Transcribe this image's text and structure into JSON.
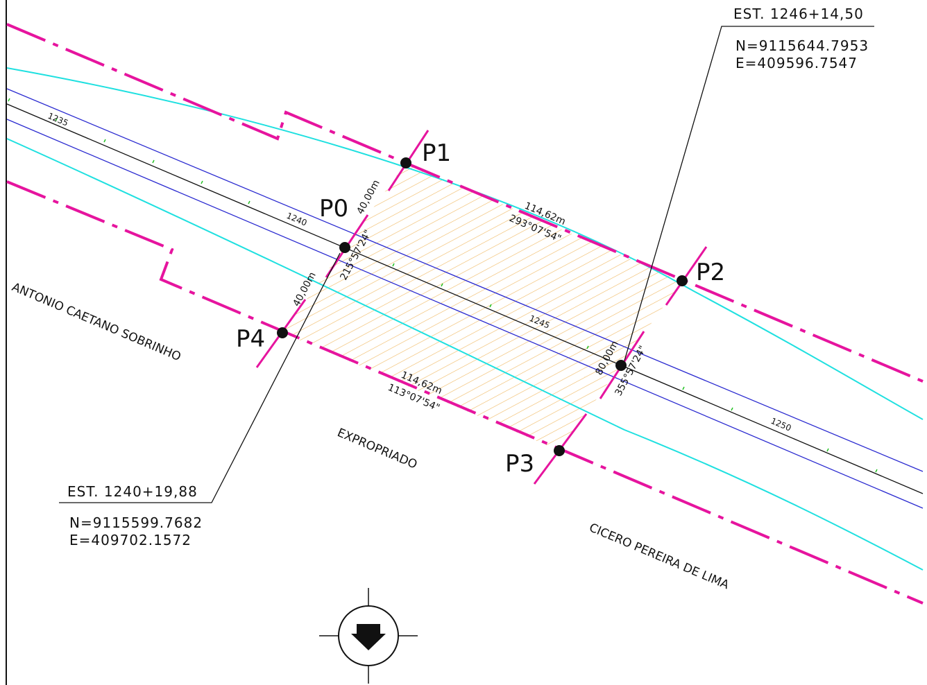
{
  "stations": {
    "upper": {
      "label": "EST. 1246+14,50",
      "north": "N=9115644.7953",
      "east": "E=409596.7547"
    },
    "lower": {
      "label": "EST. 1240+19,88",
      "north": "N=9115599.7682",
      "east": "E=409702.1572"
    }
  },
  "points": {
    "p0": "P0",
    "p1": "P1",
    "p2": "P2",
    "p3": "P3",
    "p4": "P4"
  },
  "dimensions": {
    "top_length": "114,62m",
    "top_bearing": "293°07'54\"",
    "bottom_length": "114,62m",
    "bottom_bearing": "113°07'54\"",
    "left_upper": "40,00m",
    "left_lower": "40,00m",
    "axis_length": "80,00m",
    "p0_bearing": "215°57'24\"",
    "axis_bearing": "355°57'24\""
  },
  "stakes": [
    "1235",
    "1240",
    "1245",
    "1250"
  ],
  "owners": {
    "left": "ANTONIO CAETANO SOBRINHO",
    "center": "EXPROPRIADO",
    "right": "CICERO PEREIRA DE LIMA"
  }
}
